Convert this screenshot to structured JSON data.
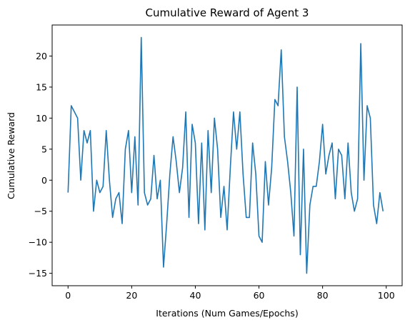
{
  "chart_data": {
    "type": "line",
    "title": "Cumulative Reward of Agent 3",
    "xlabel": "Iterations (Num Games/Epochs)",
    "ylabel": "Cumulative Reward",
    "xlim": [
      -5,
      105
    ],
    "ylim": [
      -17,
      25
    ],
    "xticks": [
      0,
      20,
      40,
      60,
      80,
      100
    ],
    "yticks": [
      -15,
      -10,
      -5,
      0,
      5,
      10,
      15,
      20
    ],
    "grid": false,
    "legend": "none",
    "series": [
      {
        "color": "#1f77b4",
        "x": [
          0,
          1,
          2,
          3,
          4,
          5,
          6,
          7,
          8,
          9,
          10,
          11,
          12,
          13,
          14,
          15,
          16,
          17,
          18,
          19,
          20,
          21,
          22,
          23,
          24,
          25,
          26,
          27,
          28,
          29,
          30,
          31,
          32,
          33,
          34,
          35,
          36,
          37,
          38,
          39,
          40,
          41,
          42,
          43,
          44,
          45,
          46,
          47,
          48,
          49,
          50,
          51,
          52,
          53,
          54,
          55,
          56,
          57,
          58,
          59,
          60,
          61,
          62,
          63,
          64,
          65,
          66,
          67,
          68,
          69,
          70,
          71,
          72,
          73,
          74,
          75,
          76,
          77,
          78,
          79,
          80,
          81,
          82,
          83,
          84,
          85,
          86,
          87,
          88,
          89,
          90,
          91,
          92,
          93,
          94,
          95,
          96,
          97,
          98,
          99
        ],
        "y": [
          -2,
          12,
          11,
          10,
          0,
          8,
          6,
          8,
          -5,
          0,
          -2,
          -1,
          8,
          0,
          -6,
          -3,
          -2,
          -7,
          5,
          8,
          -2,
          7,
          -4,
          23,
          -2,
          -4,
          -3,
          4,
          -3,
          0,
          -14,
          -7,
          1,
          7,
          3,
          -2,
          2,
          11,
          -6,
          9,
          6,
          -7,
          6,
          -8,
          8,
          -2,
          10,
          5,
          -6,
          -1,
          -8,
          2,
          11,
          5,
          11,
          1,
          -6,
          -6,
          6,
          1,
          -9,
          -10,
          3,
          -4,
          2,
          13,
          12,
          21,
          7,
          3,
          -2,
          -9,
          15,
          -12,
          5,
          -15,
          -4,
          -1,
          -1,
          3,
          9,
          1,
          4,
          6,
          -3,
          5,
          4,
          -3,
          6,
          -2,
          -5,
          -3,
          22,
          0,
          12,
          10,
          -4,
          -7,
          -2,
          -5
        ]
      }
    ]
  }
}
